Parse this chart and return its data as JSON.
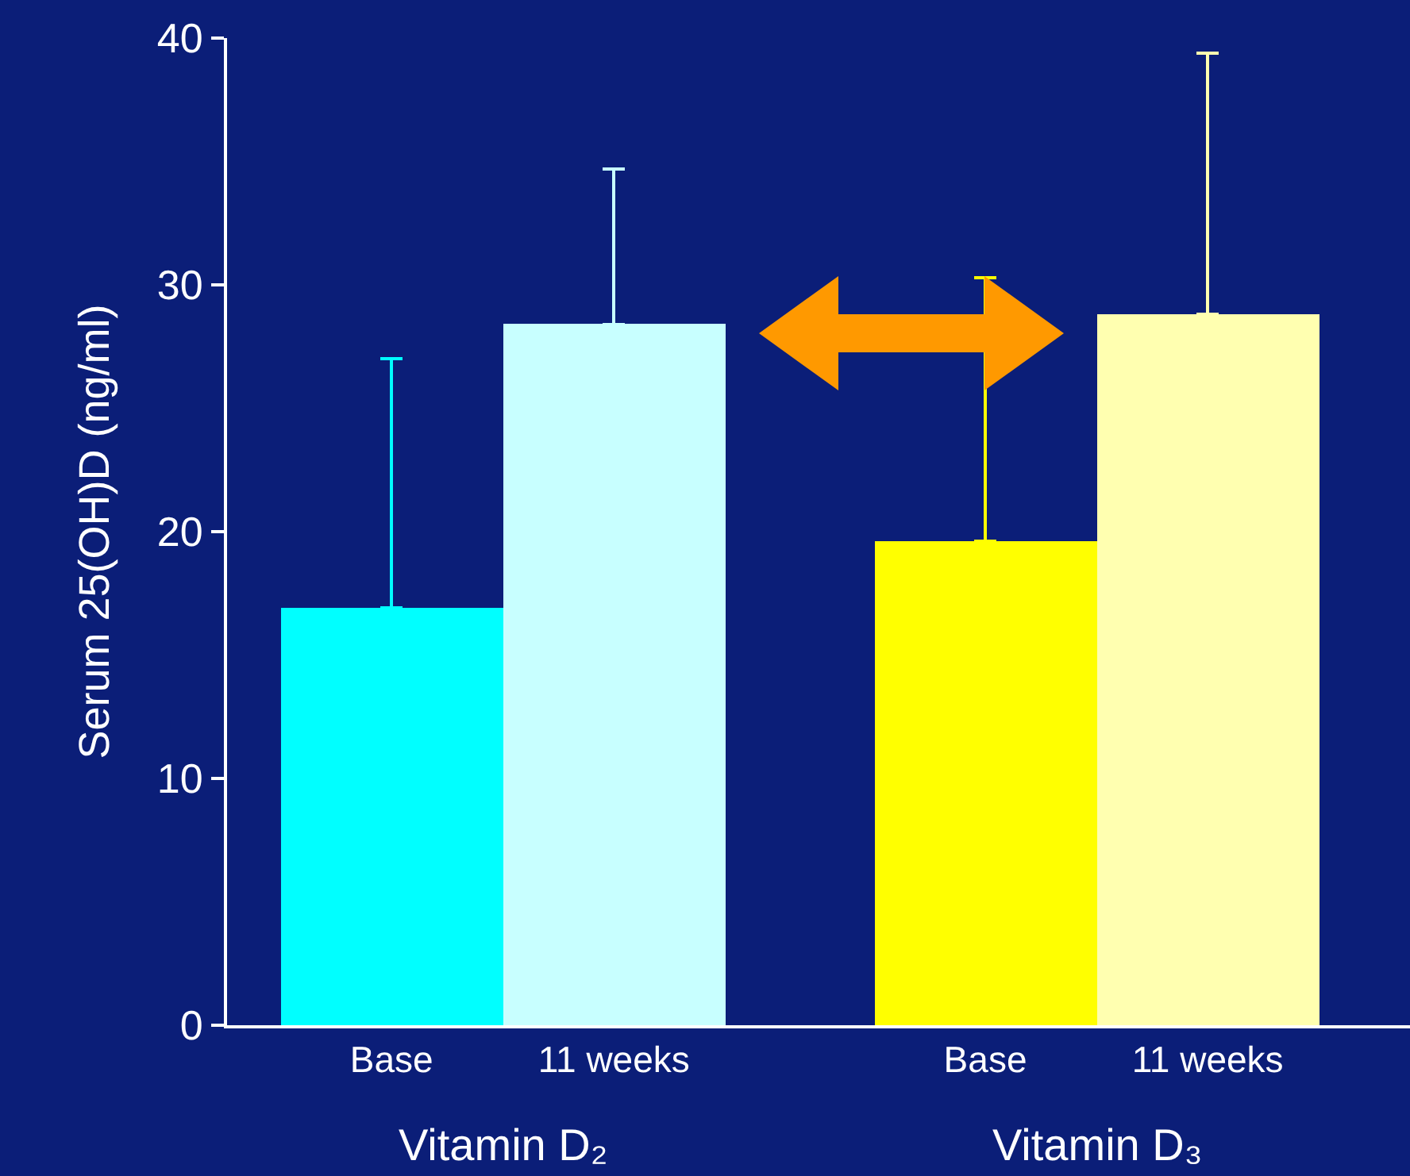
{
  "chart_data": {
    "type": "bar",
    "ylabel": "Serum 25(OH)D (ng/ml)",
    "categories": [
      "Base",
      "11 weeks",
      "Base",
      "11 weeks"
    ],
    "values": [
      16.9,
      28.4,
      19.6,
      28.8
    ],
    "colors": [
      "#00ffff",
      "#c8ffff",
      "#ffff00",
      "#ffffb0"
    ],
    "errors": [
      [
        16.9,
        27.0
      ],
      [
        28.4,
        34.7
      ],
      [
        19.6,
        30.3
      ],
      [
        28.8,
        39.4
      ]
    ],
    "ylim": [
      0,
      40
    ],
    "yticks": [
      0,
      10,
      20,
      30,
      40
    ],
    "annotations": [
      "Vitamin D₂",
      "Vitamin D₃"
    ]
  }
}
